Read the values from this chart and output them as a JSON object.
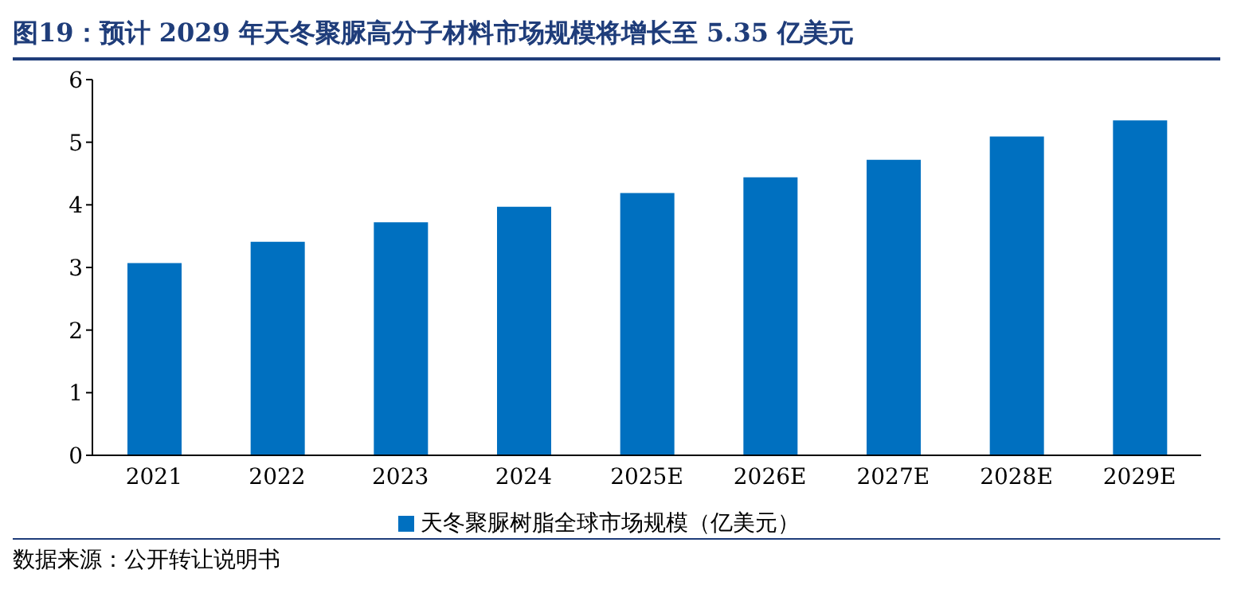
{
  "chart_data": {
    "type": "bar",
    "title": "图19：预计 2029 年天冬聚脲高分子材料市场规模将增长至 5.35 亿美元",
    "categories": [
      "2021",
      "2022",
      "2023",
      "2024",
      "2025E",
      "2026E",
      "2027E",
      "2028E",
      "2029E"
    ],
    "series": [
      {
        "name": "天冬聚脲树脂全球市场规模（亿美元）",
        "color": "#0070c0",
        "values": [
          3.07,
          3.41,
          3.72,
          3.97,
          4.19,
          4.44,
          4.72,
          5.09,
          5.35
        ]
      }
    ],
    "ylim": [
      0,
      6
    ],
    "yticks": [
      0,
      1,
      2,
      3,
      4,
      5,
      6
    ],
    "grid": false,
    "legend": "bottom",
    "annotations": [
      "数据来源：公开转让说明书"
    ]
  }
}
